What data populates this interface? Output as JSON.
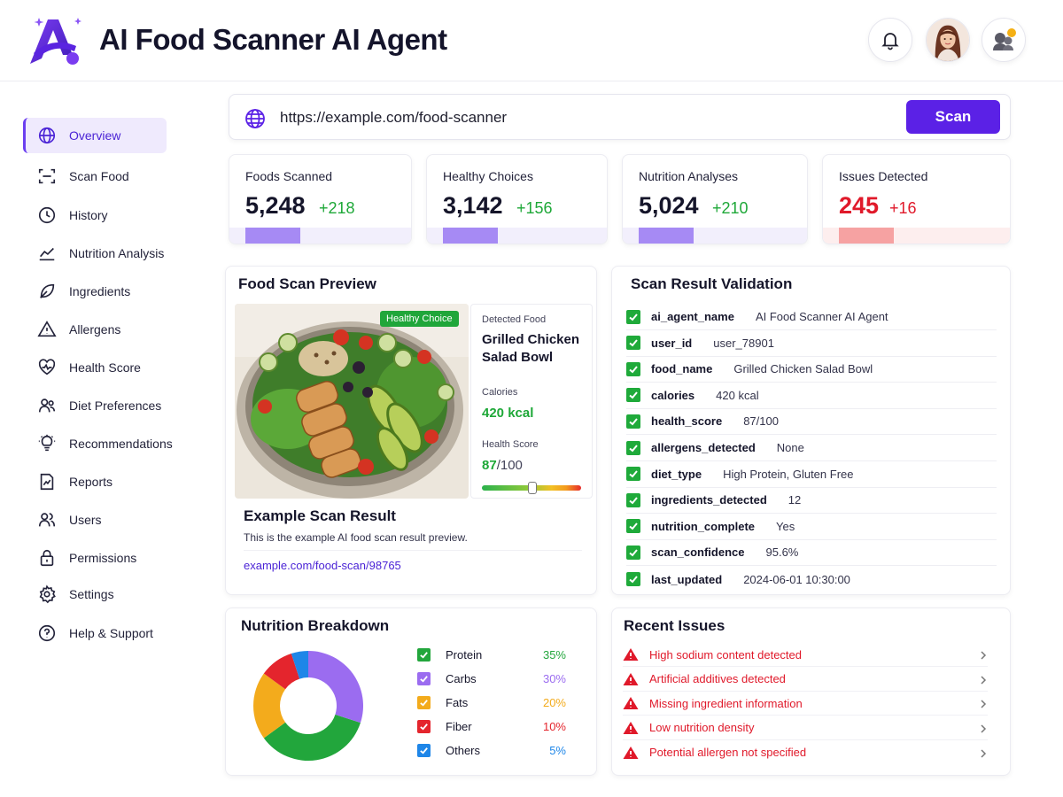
{
  "header": {
    "title": "AI Food Scanner AI Agent",
    "logo_icon": "ai-agent-logo",
    "notifications_icon": "bell-icon",
    "avatar": "user-avatar",
    "agent_icon": "agent-status-icon"
  },
  "sidebar": {
    "items": [
      {
        "label": "Overview",
        "icon": "globe-icon",
        "active": true
      },
      {
        "label": "Scan Food",
        "icon": "scan-icon"
      },
      {
        "label": "History",
        "icon": "clock-icon"
      },
      {
        "label": "Nutrition Analysis",
        "icon": "chart-icon"
      },
      {
        "label": "Ingredients",
        "icon": "leaf-icon"
      },
      {
        "label": "Allergens",
        "icon": "warning-icon"
      },
      {
        "label": "Health Score",
        "icon": "heart-pulse-icon"
      },
      {
        "label": "Diet Preferences",
        "icon": "people-icon"
      },
      {
        "label": "Recommendations",
        "icon": "lightbulb-icon"
      },
      {
        "label": "Reports",
        "icon": "report-icon"
      },
      {
        "label": "Users",
        "icon": "users-icon"
      },
      {
        "label": "Permissions",
        "icon": "lock-icon"
      },
      {
        "label": "Settings",
        "icon": "gear-icon"
      },
      {
        "label": "Help & Support",
        "icon": "help-icon"
      }
    ]
  },
  "search": {
    "value": "https://example.com/food-scanner",
    "button_label": "Scan"
  },
  "stats": [
    {
      "label": "Foods Scanned",
      "value": "5,248",
      "delta": "+218"
    },
    {
      "label": "Healthy Choices",
      "value": "3,142",
      "delta": "+156"
    },
    {
      "label": "Nutrition Analyses",
      "value": "5,024",
      "delta": "+210"
    },
    {
      "label": "Issues Detected",
      "value": "245",
      "delta": "+16"
    }
  ],
  "preview": {
    "title": "Food Scan Preview",
    "badge": "Healthy Choice",
    "detected_label": "Detected Food",
    "food_name": "Grilled Chicken Salad Bowl",
    "calories_label": "Calories",
    "calories_value": "420 kcal",
    "health_label": "Health Score",
    "health_value": "87",
    "health_max": "/100",
    "health_fraction": 0.87,
    "example_title": "Example Scan Result",
    "example_desc": "This is the example AI food scan result preview.",
    "example_link": "example.com/food-scan/98765"
  },
  "validation": {
    "title": "Scan Result Validation",
    "rows": [
      {
        "key": "ai_agent_name",
        "value": "AI Food Scanner AI Agent"
      },
      {
        "key": "user_id",
        "value": "user_78901"
      },
      {
        "key": "food_name",
        "value": "Grilled Chicken Salad Bowl"
      },
      {
        "key": "calories",
        "value": "420 kcal"
      },
      {
        "key": "health_score",
        "value": "87/100"
      },
      {
        "key": "allergens_detected",
        "value": "None"
      },
      {
        "key": "diet_type",
        "value": "High Protein, Gluten Free"
      },
      {
        "key": "ingredients_detected",
        "value": "12"
      },
      {
        "key": "nutrition_complete",
        "value": "Yes"
      },
      {
        "key": "scan_confidence",
        "value": "95.6%"
      },
      {
        "key": "last_updated",
        "value": "2024-06-01 10:30:00"
      }
    ]
  },
  "nutrition": {
    "title": "Nutrition Breakdown",
    "items": [
      {
        "name": "Protein",
        "pct": "35%",
        "value": 35,
        "color": "#22a63c"
      },
      {
        "name": "Carbs",
        "pct": "30%",
        "value": 30,
        "color": "#9b6cf0"
      },
      {
        "name": "Fats",
        "pct": "20%",
        "value": 20,
        "color": "#f3ab1c"
      },
      {
        "name": "Fiber",
        "pct": "10%",
        "value": 10,
        "color": "#e4252d"
      },
      {
        "name": "Others",
        "pct": "5%",
        "value": 5,
        "color": "#1e86e8"
      }
    ]
  },
  "issues": {
    "title": "Recent Issues",
    "items": [
      "High sodium content detected",
      "Artificial additives detected",
      "Missing ingredient information",
      "Low nutrition density",
      "Potential allergen not specified"
    ]
  },
  "colors": {
    "accent": "#5b21e6",
    "success": "#1ea838",
    "danger": "#e0192a"
  }
}
